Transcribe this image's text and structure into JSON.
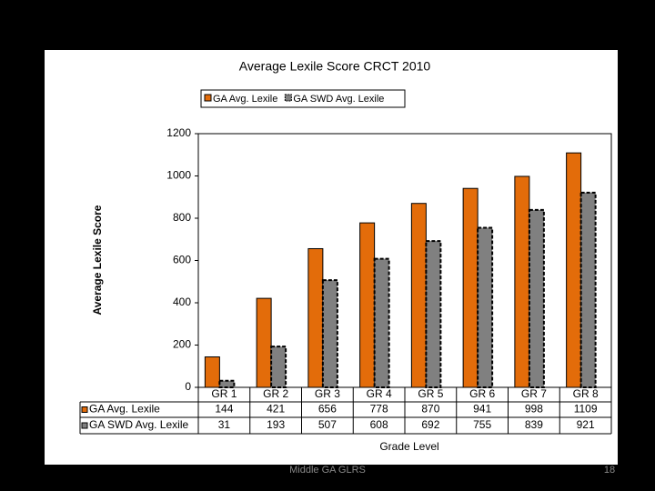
{
  "chart_data": {
    "type": "bar",
    "title": "Average Lexile Score CRCT 2010",
    "x_label": "Grade Level",
    "y_label": "Average Lexile Score",
    "categories": [
      "GR 1",
      "GR 2",
      "GR 3",
      "GR 4",
      "GR 5",
      "GR 6",
      "GR 7",
      "GR 8"
    ],
    "series": [
      {
        "name": "GA Avg. Lexile",
        "color": "#e36c0a",
        "values": [
          144,
          421,
          656,
          778,
          870,
          941,
          998,
          1109
        ]
      },
      {
        "name": "GA SWD Avg. Lexile",
        "color": "#808080",
        "values": [
          31,
          193,
          507,
          608,
          692,
          755,
          839,
          921
        ]
      }
    ],
    "ylim": [
      0,
      1200
    ],
    "yticks": [
      0,
      200,
      400,
      600,
      800,
      1000,
      1200
    ],
    "legend": "top",
    "data_table": true
  },
  "footer": {
    "source": "Middle GA GLRS",
    "page": "18"
  }
}
